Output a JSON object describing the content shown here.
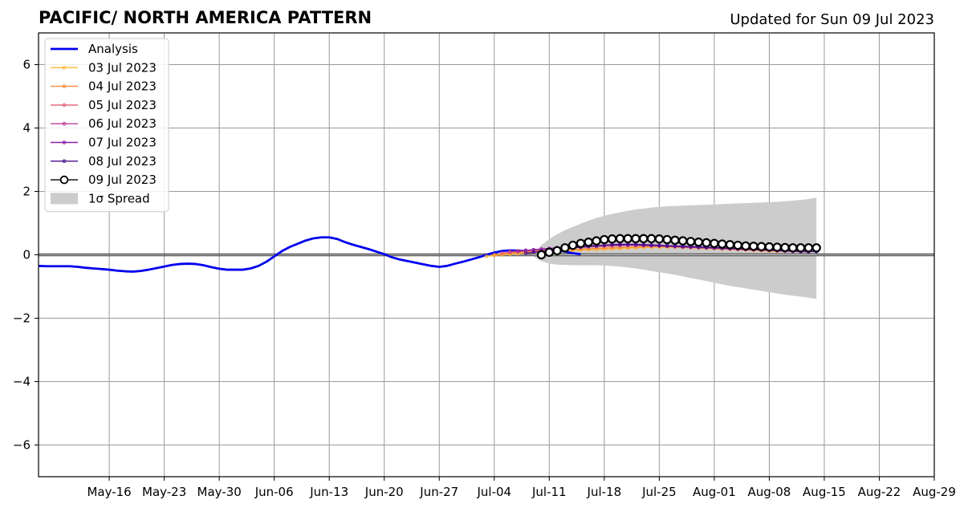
{
  "chart_data": {
    "type": "line",
    "title": "PACIFIC/ NORTH AMERICA PATTERN",
    "subtitle": "Updated for Sun 09 Jul 2023",
    "xlabel": "",
    "ylabel": "",
    "x_range": [
      "2023-05-07",
      "2023-08-29"
    ],
    "ylim": [
      -7,
      7
    ],
    "grid": true,
    "legend_position": "top-left",
    "x_ticks": [
      {
        "date": "2023-05-16",
        "label": "May-16"
      },
      {
        "date": "2023-05-23",
        "label": "May-23"
      },
      {
        "date": "2023-05-30",
        "label": "May-30"
      },
      {
        "date": "2023-06-06",
        "label": "Jun-06"
      },
      {
        "date": "2023-06-13",
        "label": "Jun-13"
      },
      {
        "date": "2023-06-20",
        "label": "Jun-20"
      },
      {
        "date": "2023-06-27",
        "label": "Jun-27"
      },
      {
        "date": "2023-07-04",
        "label": "Jul-04"
      },
      {
        "date": "2023-07-11",
        "label": "Jul-11"
      },
      {
        "date": "2023-07-18",
        "label": "Jul-18"
      },
      {
        "date": "2023-07-25",
        "label": "Jul-25"
      },
      {
        "date": "2023-08-01",
        "label": "Aug-01"
      },
      {
        "date": "2023-08-08",
        "label": "Aug-08"
      },
      {
        "date": "2023-08-15",
        "label": "Aug-15"
      },
      {
        "date": "2023-08-22",
        "label": "Aug-22"
      },
      {
        "date": "2023-08-29",
        "label": "Aug-29"
      }
    ],
    "y_ticks": [
      {
        "value": -6,
        "label": "−6"
      },
      {
        "value": -4,
        "label": "−4"
      },
      {
        "value": -2,
        "label": "−2"
      },
      {
        "value": 0,
        "label": "0"
      },
      {
        "value": 2,
        "label": "2"
      },
      {
        "value": 4,
        "label": "4"
      },
      {
        "value": 6,
        "label": "6"
      }
    ],
    "analysis": {
      "name": "Analysis",
      "color": "#0000ee",
      "start_date": "2023-05-07",
      "values": [
        -0.35,
        -0.36,
        -0.36,
        -0.36,
        -0.36,
        -0.38,
        -0.41,
        -0.43,
        -0.45,
        -0.47,
        -0.5,
        -0.52,
        -0.53,
        -0.51,
        -0.47,
        -0.42,
        -0.37,
        -0.32,
        -0.29,
        -0.28,
        -0.29,
        -0.33,
        -0.39,
        -0.44,
        -0.47,
        -0.47,
        -0.47,
        -0.43,
        -0.35,
        -0.22,
        -0.05,
        0.12,
        0.25,
        0.35,
        0.45,
        0.52,
        0.55,
        0.55,
        0.5,
        0.4,
        0.32,
        0.25,
        0.18,
        0.1,
        0.02,
        -0.08,
        -0.15,
        -0.2,
        -0.25,
        -0.3,
        -0.35,
        -0.38,
        -0.35,
        -0.28,
        -0.22,
        -0.15,
        -0.08,
        0.0,
        0.07,
        0.12,
        0.14,
        0.13,
        0.12,
        0.13,
        0.15,
        0.16,
        0.15,
        0.1,
        0.05,
        0.02
      ]
    },
    "forecasts": [
      {
        "name": "03 Jul 2023",
        "color": "#ffb833",
        "start_date": "2023-07-03",
        "values": [
          -0.05,
          -0.02,
          0.0,
          0.02,
          0.04,
          0.06,
          0.08,
          0.1,
          0.11,
          0.12,
          0.13,
          0.14,
          0.15,
          0.16,
          0.17,
          0.18,
          0.19,
          0.2,
          0.21,
          0.22,
          0.23,
          0.24,
          0.24,
          0.24,
          0.24,
          0.23,
          0.22,
          0.21,
          0.2,
          0.19,
          0.18,
          0.17,
          0.16,
          0.15,
          0.14,
          0.13,
          0.12,
          0.11
        ]
      },
      {
        "name": "04 Jul 2023",
        "color": "#f58a3c",
        "start_date": "2023-07-04",
        "values": [
          0.0,
          0.03,
          0.05,
          0.07,
          0.09,
          0.11,
          0.13,
          0.14,
          0.15,
          0.16,
          0.17,
          0.18,
          0.19,
          0.2,
          0.21,
          0.22,
          0.23,
          0.24,
          0.25,
          0.26,
          0.26,
          0.26,
          0.26,
          0.25,
          0.24,
          0.23,
          0.22,
          0.21,
          0.2,
          0.19,
          0.18,
          0.17,
          0.16,
          0.15,
          0.14,
          0.13,
          0.12,
          0.11
        ]
      },
      {
        "name": "05 Jul 2023",
        "color": "#e35f72",
        "start_date": "2023-07-05",
        "values": [
          0.05,
          0.08,
          0.1,
          0.12,
          0.14,
          0.16,
          0.18,
          0.2,
          0.22,
          0.23,
          0.24,
          0.25,
          0.26,
          0.27,
          0.28,
          0.29,
          0.3,
          0.3,
          0.3,
          0.3,
          0.29,
          0.28,
          0.27,
          0.26,
          0.25,
          0.24,
          0.23,
          0.22,
          0.21,
          0.2,
          0.19,
          0.18,
          0.17,
          0.16,
          0.15,
          0.14,
          0.13,
          0.12
        ]
      },
      {
        "name": "06 Jul 2023",
        "color": "#b83b99",
        "start_date": "2023-07-06",
        "values": [
          0.1,
          0.12,
          0.14,
          0.16,
          0.18,
          0.2,
          0.22,
          0.24,
          0.26,
          0.27,
          0.28,
          0.29,
          0.3,
          0.31,
          0.31,
          0.31,
          0.31,
          0.3,
          0.29,
          0.28,
          0.27,
          0.26,
          0.25,
          0.24,
          0.23,
          0.22,
          0.21,
          0.2,
          0.19,
          0.18,
          0.17,
          0.16,
          0.15,
          0.14,
          0.13,
          0.12,
          0.11,
          0.1
        ]
      },
      {
        "name": "07 Jul 2023",
        "color": "#8b1fa8",
        "start_date": "2023-07-07",
        "values": [
          0.12,
          0.14,
          0.16,
          0.18,
          0.2,
          0.22,
          0.24,
          0.26,
          0.27,
          0.28,
          0.29,
          0.3,
          0.31,
          0.31,
          0.31,
          0.31,
          0.3,
          0.29,
          0.28,
          0.27,
          0.26,
          0.25,
          0.24,
          0.23,
          0.22,
          0.21,
          0.2,
          0.19,
          0.18,
          0.17,
          0.16,
          0.15,
          0.14,
          0.13,
          0.12,
          0.11,
          0.1,
          0.09
        ]
      },
      {
        "name": "08 Jul 2023",
        "color": "#4a0c8c",
        "start_date": "2023-07-08",
        "values": [
          0.05,
          0.08,
          0.11,
          0.14,
          0.17,
          0.2,
          0.22,
          0.24,
          0.26,
          0.28,
          0.3,
          0.32,
          0.33,
          0.33,
          0.33,
          0.32,
          0.31,
          0.3,
          0.29,
          0.28,
          0.27,
          0.26,
          0.25,
          0.24,
          0.23,
          0.22,
          0.21,
          0.2,
          0.19,
          0.18,
          0.17,
          0.16,
          0.15,
          0.14,
          0.13,
          0.12,
          0.11,
          0.1
        ]
      },
      {
        "name": "09 Jul 2023",
        "color": "#000000",
        "start_date": "2023-07-10",
        "values": [
          0.0,
          0.08,
          0.13,
          0.22,
          0.3,
          0.36,
          0.4,
          0.44,
          0.48,
          0.5,
          0.51,
          0.51,
          0.51,
          0.51,
          0.51,
          0.5,
          0.48,
          0.46,
          0.44,
          0.42,
          0.4,
          0.38,
          0.36,
          0.34,
          0.32,
          0.3,
          0.28,
          0.27,
          0.26,
          0.25,
          0.24,
          0.23,
          0.22,
          0.22,
          0.22,
          0.22
        ]
      }
    ],
    "spread": {
      "name": "1σ Spread",
      "color": "#cccccc",
      "start_date": "2023-07-09",
      "upper": [
        0.05,
        0.3,
        0.5,
        0.65,
        0.78,
        0.88,
        0.98,
        1.08,
        1.16,
        1.23,
        1.29,
        1.34,
        1.39,
        1.43,
        1.46,
        1.49,
        1.51,
        1.53,
        1.54,
        1.55,
        1.56,
        1.57,
        1.58,
        1.59,
        1.6,
        1.61,
        1.62,
        1.63,
        1.64,
        1.65,
        1.66,
        1.67,
        1.69,
        1.71,
        1.73,
        1.76,
        1.8
      ],
      "lower": [
        -0.05,
        -0.2,
        -0.28,
        -0.31,
        -0.32,
        -0.33,
        -0.33,
        -0.33,
        -0.33,
        -0.34,
        -0.35,
        -0.37,
        -0.4,
        -0.43,
        -0.47,
        -0.51,
        -0.55,
        -0.59,
        -0.63,
        -0.68,
        -0.73,
        -0.78,
        -0.83,
        -0.88,
        -0.93,
        -0.98,
        -1.02,
        -1.06,
        -1.1,
        -1.14,
        -1.18,
        -1.22,
        -1.26,
        -1.29,
        -1.32,
        -1.35,
        -1.39
      ]
    }
  }
}
